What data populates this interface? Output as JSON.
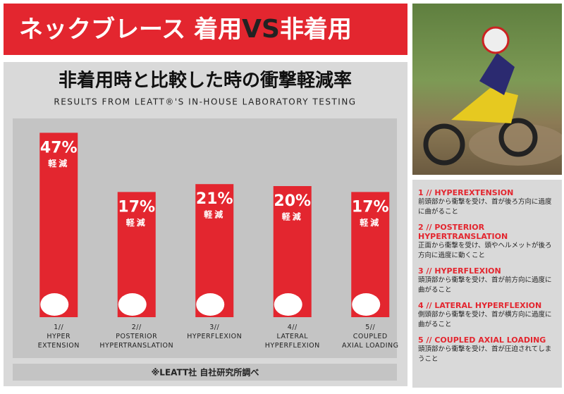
{
  "header": {
    "title_parts": [
      "ネックブレース 着用",
      "VS",
      "非着用"
    ]
  },
  "chart_data": {
    "type": "bar",
    "title": "非着用時と比較した時の衝撃軽減率",
    "subtitle": "RESULTS FROM LEATT®'S IN-HOUSE LABORATORY TESTING",
    "categories": [
      "1//\nHYPER\nEXTENSION",
      "2//\nPOSTERIOR\nHYPERTRANSLATION",
      "3//\nHYPERFLEXION",
      "4//\nLATERAL\nHYPERFLEXION",
      "5//\nCOUPLED\nAXIAL LOADING"
    ],
    "values": [
      47,
      17,
      21,
      20,
      17
    ],
    "value_labels": [
      "47%",
      "17%",
      "21%",
      "20%",
      "17%"
    ],
    "reduction_label": "軽減",
    "color": "#e3262f",
    "footnote": "※LEATT社 自社研究所調べ"
  },
  "sidebar": {
    "items": [
      {
        "title": "1 // HYPEREXTENSION",
        "text": "前頭部から衝撃を受け、首が後ろ方向に過度に曲がること"
      },
      {
        "title": "2 // POSTERIOR HYPERTRANSLATION",
        "text": "正面から衝撃を受け、頭やヘルメットが後ろ方向に過度に動くこと"
      },
      {
        "title": "3 // HYPERFLEXION",
        "text": "頭頂部から衝撃を受け、首が前方向に過度に曲がること"
      },
      {
        "title": "4 // LATERAL HYPERFLEXION",
        "text": "側頭部から衝撃を受け、首が横方向に過度に曲がること"
      },
      {
        "title": "5 // COUPLED AXIAL LOADING",
        "text": "頭頂部から衝撃を受け、首が圧迫されてしまうこと"
      }
    ]
  }
}
